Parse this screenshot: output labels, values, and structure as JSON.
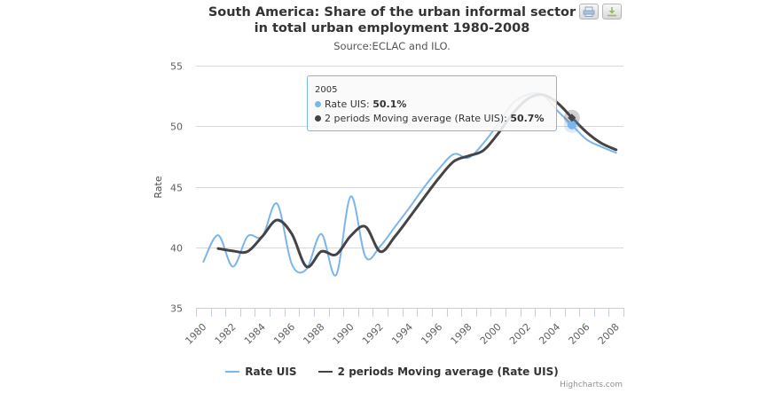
{
  "header": {
    "title_line1": "South America: Share of the urban informal sector",
    "title_line2": "in total urban employment 1980-2008",
    "subtitle": "Source:ECLAC and ILO."
  },
  "toolbar": {
    "print_icon": "printer-icon",
    "download_icon": "download-icon"
  },
  "tooltip": {
    "header": "2005",
    "rows": [
      {
        "label": "Rate UIS: ",
        "value": "50.1%",
        "color": "#7cb5ec"
      },
      {
        "label": "2 periods Moving average (Rate UIS): ",
        "value": "50.7%",
        "color": "#434348"
      }
    ]
  },
  "credits": "Highcharts.com",
  "chart_data": {
    "type": "line",
    "title": "South America: Share of the urban informal sector in total urban employment 1980-2008",
    "subtitle": "Source:ECLAC and ILO.",
    "xlabel": "",
    "ylabel": "Rate",
    "ylim": [
      35,
      55
    ],
    "yticks": [
      35,
      40,
      45,
      50,
      55
    ],
    "xlim": [
      1980,
      2008
    ],
    "xticks": [
      "1980",
      "1982",
      "1984",
      "1986",
      "1988",
      "1990",
      "1992",
      "1994",
      "1996",
      "1998",
      "2000",
      "2002",
      "2004",
      "2006",
      "2008"
    ],
    "grid": true,
    "legend": "bottom-center",
    "x": [
      1980,
      1981,
      1982,
      1983,
      1984,
      1985,
      1986,
      1987,
      1988,
      1989,
      1990,
      1991,
      1992,
      1993,
      1994,
      1995,
      1996,
      1997,
      1998,
      1999,
      2000,
      2001,
      2002,
      2003,
      2004,
      2005,
      2006,
      2007,
      2008
    ],
    "series": [
      {
        "name": "Rate UIS",
        "color": "#7cb5ec",
        "values": [
          38.8,
          41.0,
          38.4,
          40.9,
          40.9,
          43.6,
          38.6,
          38.2,
          41.1,
          37.7,
          44.2,
          39.2,
          40.1,
          41.7,
          43.3,
          45.0,
          46.5,
          47.7,
          47.4,
          48.6,
          50.2,
          51.9,
          52.6,
          52.6,
          51.3,
          50.1,
          48.9,
          48.3,
          47.8
        ]
      },
      {
        "name": "2 periods Moving average (Rate UIS)",
        "color": "#434348",
        "values": [
          null,
          39.9,
          39.7,
          39.65,
          40.9,
          42.25,
          41.1,
          38.4,
          39.65,
          39.4,
          40.95,
          41.7,
          39.65,
          40.9,
          42.5,
          44.15,
          45.75,
          47.1,
          47.55,
          48.0,
          49.4,
          51.05,
          52.25,
          52.6,
          51.95,
          50.7,
          49.5,
          48.6,
          48.05
        ]
      }
    ],
    "highlight": {
      "x": 2005,
      "series": [
        "Rate UIS",
        "2 periods Moving average (Rate UIS)"
      ]
    }
  }
}
